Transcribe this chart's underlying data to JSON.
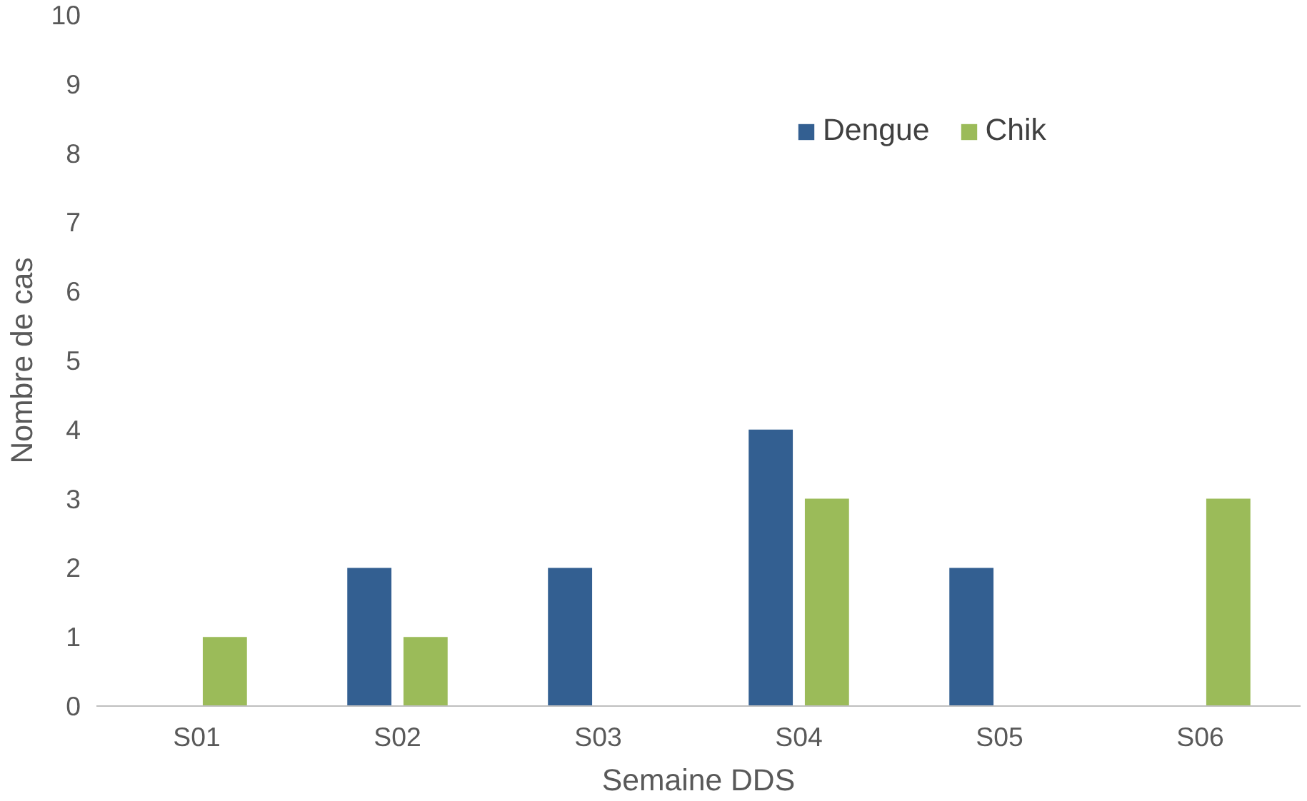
{
  "chart_data": {
    "type": "bar",
    "xlabel": "Semaine DDS",
    "ylabel": "Nombre de cas",
    "categories": [
      "S01",
      "S02",
      "S03",
      "S04",
      "S05",
      "S06"
    ],
    "series": [
      {
        "name": "Dengue",
        "color": "#335f91",
        "values": [
          0,
          2,
          2,
          4,
          2,
          0
        ]
      },
      {
        "name": "Chik",
        "color": "#9bbb59",
        "values": [
          1,
          1,
          0,
          3,
          0,
          3
        ]
      }
    ],
    "ylim": [
      0,
      10
    ],
    "yticks": [
      0,
      1,
      2,
      3,
      4,
      5,
      6,
      7,
      8,
      9,
      10
    ],
    "grid": false,
    "legend": "top right"
  }
}
